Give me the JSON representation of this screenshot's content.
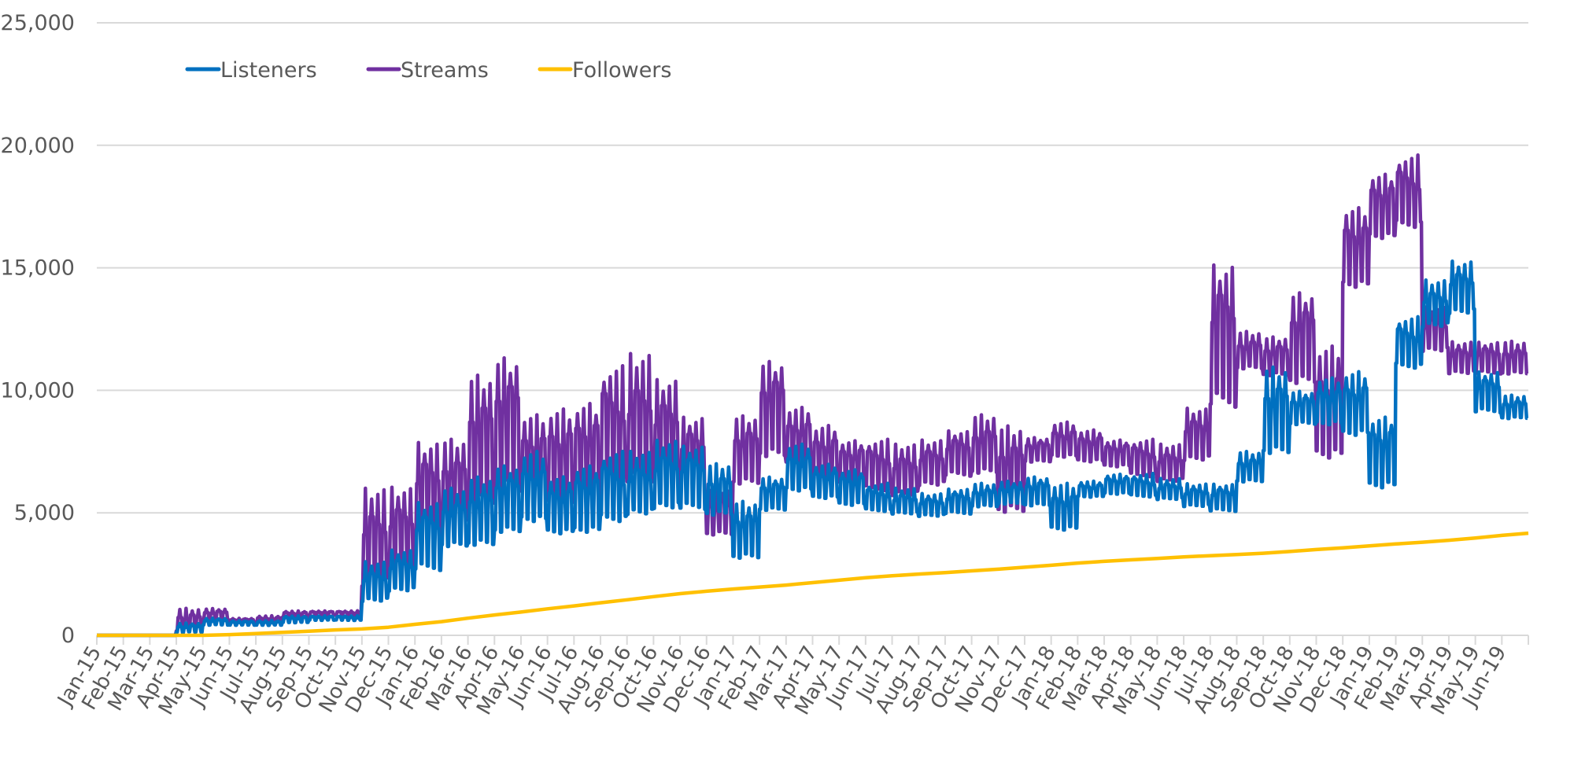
{
  "chart_data": {
    "type": "line",
    "title": "",
    "xlabel": "",
    "ylabel": "",
    "ylim": [
      0,
      25000
    ],
    "yticks": [
      0,
      5000,
      10000,
      15000,
      20000,
      25000
    ],
    "ytick_labels": [
      "0",
      "5,000",
      "10,000",
      "15,000",
      "20,000",
      "25,000"
    ],
    "grid": true,
    "legend_position": "top-left",
    "categories": [
      "Jan-15",
      "Feb-15",
      "Mar-15",
      "Apr-15",
      "May-15",
      "Jun-15",
      "Jul-15",
      "Aug-15",
      "Sep-15",
      "Oct-15",
      "Nov-15",
      "Dec-15",
      "Jan-16",
      "Feb-16",
      "Mar-16",
      "Apr-16",
      "May-16",
      "Jun-16",
      "Jul-16",
      "Aug-16",
      "Sep-16",
      "Oct-16",
      "Nov-16",
      "Dec-16",
      "Jan-17",
      "Feb-17",
      "Mar-17",
      "Apr-17",
      "May-17",
      "Jun-17",
      "Jul-17",
      "Aug-17",
      "Sep-17",
      "Oct-17",
      "Nov-17",
      "Dec-17",
      "Jan-18",
      "Feb-18",
      "Mar-18",
      "Apr-18",
      "May-18",
      "Jun-18",
      "Jul-18",
      "Aug-18",
      "Sep-18",
      "Oct-18",
      "Nov-18",
      "Dec-18",
      "Jan-19",
      "Feb-19",
      "Mar-19",
      "Apr-19",
      "May-19",
      "Jun-19"
    ],
    "series": [
      {
        "name": "Listeners",
        "color": "#0070C0",
        "note": "daily values oscillating weekly between monthly low and high",
        "low": [
          0,
          0,
          0,
          100,
          400,
          400,
          400,
          500,
          600,
          600,
          1300,
          1700,
          2500,
          3500,
          3500,
          4000,
          4500,
          4000,
          4000,
          4500,
          4800,
          5000,
          5000,
          4800,
          3000,
          5000,
          5800,
          5500,
          5200,
          5000,
          4900,
          4800,
          4900,
          5200,
          5300,
          5200,
          4200,
          5600,
          5700,
          5600,
          5500,
          5200,
          5000,
          6200,
          7200,
          8500,
          8500,
          8000,
          5800,
          10800,
          12500,
          13000,
          9000,
          8800
        ],
        "high": [
          0,
          0,
          0,
          500,
          700,
          600,
          600,
          800,
          800,
          800,
          3000,
          3500,
          5500,
          6000,
          6500,
          7000,
          7500,
          6500,
          7000,
          7500,
          7500,
          8000,
          7800,
          7000,
          5500,
          6500,
          7800,
          7000,
          6800,
          6200,
          6000,
          5800,
          6000,
          6200,
          6300,
          6500,
          6200,
          6300,
          6600,
          6600,
          6400,
          6200,
          6200,
          7500,
          11000,
          10000,
          10500,
          10800,
          9000,
          13000,
          14500,
          15300,
          10800,
          9800
        ]
      },
      {
        "name": "Streams",
        "color": "#7030A0",
        "note": "daily values oscillating weekly between monthly low and high",
        "low": [
          0,
          0,
          0,
          100,
          600,
          500,
          500,
          700,
          800,
          800,
          1800,
          2200,
          3500,
          4500,
          5000,
          5500,
          5500,
          5000,
          5000,
          6000,
          6000,
          6000,
          5500,
          4000,
          6000,
          7000,
          6800,
          6000,
          6000,
          5800,
          5600,
          6000,
          6400,
          6500,
          4800,
          7000,
          7200,
          7000,
          6800,
          6400,
          6200,
          7000,
          9000,
          10800,
          10500,
          10000,
          7000,
          14000,
          16000,
          16500,
          11500,
          10600,
          10600,
          10600
        ],
        "high": [
          0,
          0,
          0,
          1100,
          1100,
          700,
          800,
          1000,
          1000,
          1000,
          6000,
          6100,
          8000,
          8000,
          10700,
          11500,
          9000,
          9300,
          9600,
          11000,
          11500,
          10500,
          9000,
          6000,
          9000,
          11300,
          9300,
          8600,
          8000,
          8000,
          7800,
          8000,
          8400,
          9000,
          8600,
          8100,
          8700,
          8400,
          8000,
          8000,
          7800,
          9300,
          15300,
          12400,
          12200,
          14100,
          11800,
          17500,
          18900,
          19600,
          13400,
          12000,
          12000,
          12000
        ]
      },
      {
        "name": "Followers",
        "color": "#FFC000",
        "values": [
          0,
          0,
          0,
          0,
          30,
          70,
          120,
          170,
          220,
          260,
          330,
          450,
          560,
          700,
          830,
          950,
          1080,
          1200,
          1330,
          1450,
          1580,
          1700,
          1800,
          1890,
          1970,
          2050,
          2150,
          2250,
          2350,
          2430,
          2500,
          2560,
          2630,
          2700,
          2780,
          2860,
          2950,
          3020,
          3080,
          3140,
          3200,
          3250,
          3300,
          3350,
          3420,
          3500,
          3570,
          3650,
          3730,
          3800,
          3880,
          3970,
          4080,
          4170
        ]
      }
    ]
  },
  "legend": {
    "items": [
      {
        "label": "Listeners",
        "color": "#0070C0"
      },
      {
        "label": "Streams",
        "color": "#7030A0"
      },
      {
        "label": "Followers",
        "color": "#FFC000"
      }
    ]
  },
  "colors": {
    "grid": "#d9d9d9",
    "text": "#595959"
  }
}
